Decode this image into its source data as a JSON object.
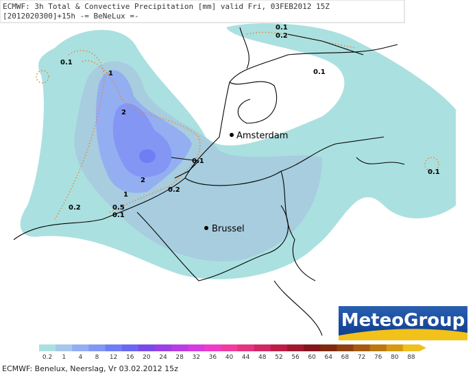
{
  "header": {
    "line1": "ECMWF: 3h Total & Convective Precipitation [mm] valid Fri, 03FEB2012 15Z",
    "line2": "[2012020300]+15h -= BeNeLux =-"
  },
  "cities": [
    "Amsterdam",
    "Brussel"
  ],
  "contour_labels": [
    "0.1",
    "0.1",
    "0.2",
    "0.1",
    "1",
    "2",
    "2",
    "1",
    "0.1",
    "0.2",
    "0.2",
    "0.5",
    "0.1",
    "0.1"
  ],
  "logo": "MeteoGroup",
  "legend": {
    "labels": [
      "0.2",
      "1",
      "4",
      "8",
      "12",
      "16",
      "20",
      "24",
      "28",
      "32",
      "36",
      "40",
      "44",
      "48",
      "52",
      "56",
      "60",
      "64",
      "68",
      "72",
      "76",
      "80",
      "88"
    ],
    "colors": [
      "#abe0e0",
      "#a7c6ec",
      "#94aef2",
      "#8396f4",
      "#707ef4",
      "#6a68f0",
      "#7a4ae8",
      "#9a40e4",
      "#b83ee2",
      "#d43ce0",
      "#ee3cc8",
      "#f03c9c",
      "#e23480",
      "#d02864",
      "#bc1e48",
      "#a0182e",
      "#841420",
      "#7e2a10",
      "#8e4010",
      "#a45a10",
      "#bc7810",
      "#d69a10",
      "#eec020"
    ]
  },
  "footer": "ECMWF: Benelux, Neerslag, Vr 03.02.2012 15z"
}
